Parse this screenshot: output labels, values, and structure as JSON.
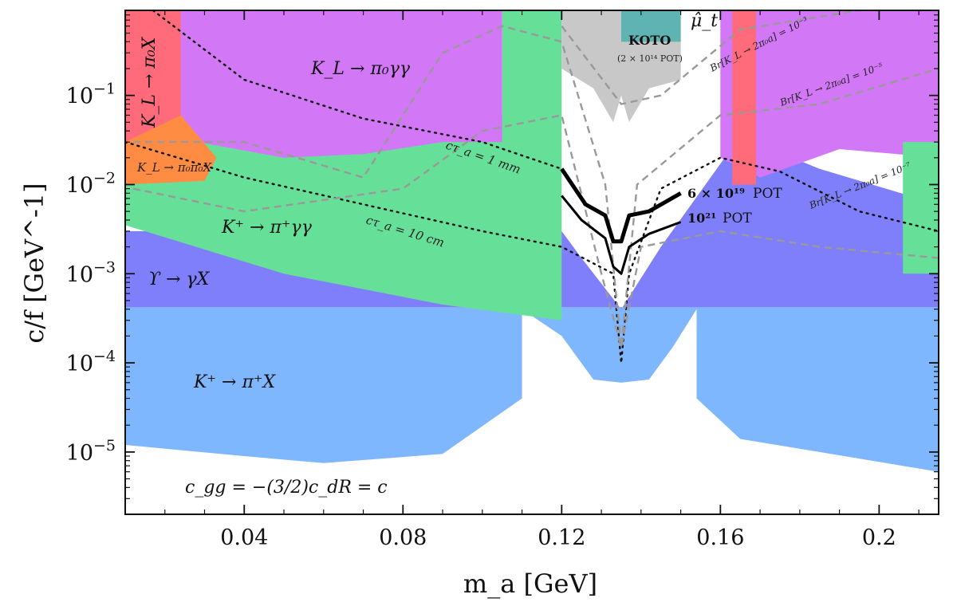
{
  "chart_data": {
    "type": "area",
    "title": "",
    "xlabel": "m_a [GeV]",
    "ylabel": "c/f [GeV^-1]",
    "xlim": [
      0.01,
      0.215
    ],
    "ylim": [
      2e-06,
      0.9
    ],
    "yscale": "log",
    "grid": false,
    "x_ticks": [
      {
        "value": 0.04,
        "label": "0.04"
      },
      {
        "value": 0.08,
        "label": "0.08"
      },
      {
        "value": 0.12,
        "label": "0.12"
      },
      {
        "value": 0.16,
        "label": "0.16"
      },
      {
        "value": 0.2,
        "label": "0.2"
      }
    ],
    "y_ticks": [
      {
        "value": 1e-05,
        "base": "10",
        "exp": "−5"
      },
      {
        "value": 0.0001,
        "base": "10",
        "exp": "−4"
      },
      {
        "value": 0.001,
        "base": "10",
        "exp": "−3"
      },
      {
        "value": 0.01,
        "base": "10",
        "exp": "−2"
      },
      {
        "value": 0.1,
        "base": "10",
        "exp": "−1"
      }
    ],
    "regions": [
      {
        "name": "K+ → π+X",
        "label": "K⁺ → π⁺X",
        "color": "#7fb7ff",
        "region_kind": "excluded",
        "lower_boundary": [
          [
            0.01,
            1.2e-05
          ],
          [
            0.04,
            9e-06
          ],
          [
            0.06,
            7.5e-06
          ],
          [
            0.09,
            9.5e-06
          ],
          [
            0.11,
            4e-05
          ],
          [
            0.11,
            0.0004
          ],
          [
            0.12,
            0.0002
          ],
          [
            0.128,
            6.5e-05
          ],
          [
            0.135,
            6e-05
          ],
          [
            0.142,
            6.5e-05
          ],
          [
            0.148,
            0.00015
          ],
          [
            0.154,
            0.0004
          ],
          [
            0.154,
            4e-05
          ],
          [
            0.165,
            1.4e-05
          ],
          [
            0.185,
            1e-05
          ],
          [
            0.215,
            6e-06
          ]
        ],
        "upper": 0.00042
      },
      {
        "name": "Upsilon → γX",
        "label": "ϒ → γX",
        "color": "#7f7ffb",
        "region_kind": "excluded",
        "lower": 0.00042,
        "upper_boundary": [
          [
            0.01,
            0.003
          ],
          [
            0.12,
            0.003
          ],
          [
            0.125,
            0.0015
          ],
          [
            0.135,
            0.0004
          ],
          [
            0.145,
            0.002
          ],
          [
            0.165,
            0.035
          ],
          [
            0.185,
            0.015
          ],
          [
            0.215,
            0.006
          ]
        ]
      },
      {
        "name": "K+ → π+γγ",
        "label": "K⁺ → π⁺γγ",
        "color": "#66e099",
        "region_kind": "excluded",
        "boundary": [
          [
            0.01,
            0.025
          ],
          [
            0.05,
            0.04
          ],
          [
            0.09,
            0.09
          ],
          [
            0.105,
            0.06
          ],
          [
            0.105,
            0.9
          ],
          [
            0.12,
            0.9
          ],
          [
            0.12,
            0.0003
          ],
          [
            0.09,
            0.00045
          ],
          [
            0.05,
            0.001
          ],
          [
            0.01,
            0.0035
          ]
        ]
      },
      {
        "name": "KL → π0γγ",
        "label": "K_L → π₀γγ",
        "color": "#d278f7",
        "region_kind": "excluded",
        "boundary": [
          [
            0.02,
            0.9
          ],
          [
            0.105,
            0.9
          ],
          [
            0.105,
            0.03
          ],
          [
            0.09,
            0.03
          ],
          [
            0.07,
            0.022
          ],
          [
            0.05,
            0.02
          ],
          [
            0.02,
            0.035
          ]
        ]
      },
      {
        "name": "KL → π0γγ (high mass)",
        "label": "",
        "color": "#d278f7",
        "region_kind": "excluded",
        "boundary": [
          [
            0.16,
            0.9
          ],
          [
            0.215,
            0.9
          ],
          [
            0.215,
            0.02
          ],
          [
            0.19,
            0.025
          ],
          [
            0.17,
            0.012
          ],
          [
            0.16,
            0.02
          ]
        ]
      },
      {
        "name": "KL → π0X",
        "label": "K_L → π₀X",
        "color": "#ff6b7a",
        "region_kind": "excluded",
        "xrange": [
          0.01,
          0.024
        ],
        "yrange": [
          0.03,
          0.9
        ]
      },
      {
        "name": "KL → π0X (high mass)",
        "label": "",
        "color": "#ff6b7a",
        "region_kind": "excluded",
        "xrange": [
          0.163,
          0.169
        ],
        "yrange": [
          0.01,
          0.9
        ]
      },
      {
        "name": "KL → π0π0X",
        "label": "K_L → π₀π₀X",
        "color": "#ff8c42",
        "region_kind": "excluded",
        "boundary": [
          [
            0.01,
            0.01
          ],
          [
            0.03,
            0.011
          ],
          [
            0.033,
            0.02
          ],
          [
            0.024,
            0.06
          ],
          [
            0.01,
            0.03
          ]
        ]
      },
      {
        "name": "K+ → π+X (high mass strip)",
        "label": "",
        "color": "#66e099",
        "region_kind": "excluded",
        "xrange": [
          0.206,
          0.215
        ],
        "yrange": [
          0.001,
          0.03
        ]
      },
      {
        "name": "KOTO",
        "label": "KOTO",
        "sublabel": "(2 × 10¹⁴ POT)",
        "color": "#c8c8c8",
        "region_kind": "excluded",
        "boundary": [
          [
            0.12,
            0.9
          ],
          [
            0.15,
            0.9
          ],
          [
            0.15,
            0.15
          ],
          [
            0.142,
            0.12
          ],
          [
            0.137,
            0.05
          ],
          [
            0.135,
            0.1
          ],
          [
            0.133,
            0.05
          ],
          [
            0.128,
            0.12
          ],
          [
            0.12,
            0.2
          ]
        ]
      },
      {
        "name": "mu_t",
        "label": "μ̂_t",
        "color": "#5fb3b3",
        "region_kind": "excluded",
        "boundary": [
          [
            0.135,
            0.9
          ],
          [
            0.15,
            0.9
          ],
          [
            0.15,
            0.4
          ],
          [
            0.135,
            0.4
          ]
        ]
      }
    ],
    "projections": [
      {
        "name": "6 × 10^19 POT",
        "label_main": "6 × 10¹⁹",
        "label_suffix": "POT",
        "points": [
          [
            0.12,
            0.015
          ],
          [
            0.126,
            0.006
          ],
          [
            0.131,
            0.0045
          ],
          [
            0.133,
            0.0023
          ],
          [
            0.135,
            0.0023
          ],
          [
            0.137,
            0.0045
          ],
          [
            0.142,
            0.005
          ],
          [
            0.15,
            0.008
          ]
        ]
      },
      {
        "name": "10^21 POT",
        "label_main": "10²¹",
        "label_suffix": "POT",
        "points": [
          [
            0.12,
            0.0075
          ],
          [
            0.125,
            0.004
          ],
          [
            0.131,
            0.0025
          ],
          [
            0.133,
            0.0012
          ],
          [
            0.135,
            0.001
          ],
          [
            0.137,
            0.002
          ],
          [
            0.142,
            0.0028
          ],
          [
            0.15,
            0.0038
          ]
        ]
      }
    ],
    "lifetime_contours": [
      {
        "label": "cτ_a = 1 mm",
        "points": [
          [
            0.017,
            0.9
          ],
          [
            0.04,
            0.15
          ],
          [
            0.07,
            0.055
          ],
          [
            0.1,
            0.03
          ],
          [
            0.12,
            0.015
          ]
        ]
      },
      {
        "label": "cτ_a = 10 cm",
        "points": [
          [
            0.01,
            0.03
          ],
          [
            0.04,
            0.012
          ],
          [
            0.07,
            0.006
          ],
          [
            0.1,
            0.003
          ],
          [
            0.12,
            0.002
          ],
          [
            0.133,
            0.001
          ],
          [
            0.135,
            0.0001
          ],
          [
            0.137,
            0.001
          ],
          [
            0.145,
            0.009
          ],
          [
            0.16,
            0.02
          ],
          [
            0.175,
            0.014
          ],
          [
            0.195,
            0.005
          ],
          [
            0.215,
            0.003
          ]
        ]
      }
    ],
    "branching_ratio_contours": [
      {
        "label": "Br[K_L → 2π₀a] = 10⁻³",
        "points": [
          [
            0.12,
            0.6
          ],
          [
            0.135,
            0.08
          ],
          [
            0.145,
            0.1
          ],
          [
            0.165,
            0.55
          ],
          [
            0.195,
            0.9
          ]
        ]
      },
      {
        "label": "Br[K_L → 2π₀a] = 10⁻⁵",
        "points": [
          [
            0.012,
            0.03
          ],
          [
            0.04,
            0.03
          ],
          [
            0.07,
            0.012
          ],
          [
            0.09,
            0.3
          ],
          [
            0.105,
            0.6
          ],
          [
            0.12,
            0.4
          ],
          [
            0.131,
            0.01
          ],
          [
            0.135,
            0.00015
          ],
          [
            0.139,
            0.01
          ],
          [
            0.16,
            0.06
          ],
          [
            0.185,
            0.08
          ],
          [
            0.215,
            0.2
          ]
        ]
      },
      {
        "label": "Br[K_L → 2π₀a] = 10⁻⁷",
        "points": [
          [
            0.012,
            0.009
          ],
          [
            0.04,
            0.005
          ],
          [
            0.08,
            0.009
          ],
          [
            0.1,
            0.04
          ],
          [
            0.12,
            0.06
          ],
          [
            0.13,
            0.001
          ],
          [
            0.135,
            0.00015
          ],
          [
            0.14,
            0.002
          ],
          [
            0.16,
            0.003
          ],
          [
            0.185,
            0.002
          ],
          [
            0.215,
            0.0015
          ]
        ]
      }
    ],
    "annotations": [
      {
        "text": "c_gg = −(3/2)c_dR = c"
      }
    ]
  }
}
